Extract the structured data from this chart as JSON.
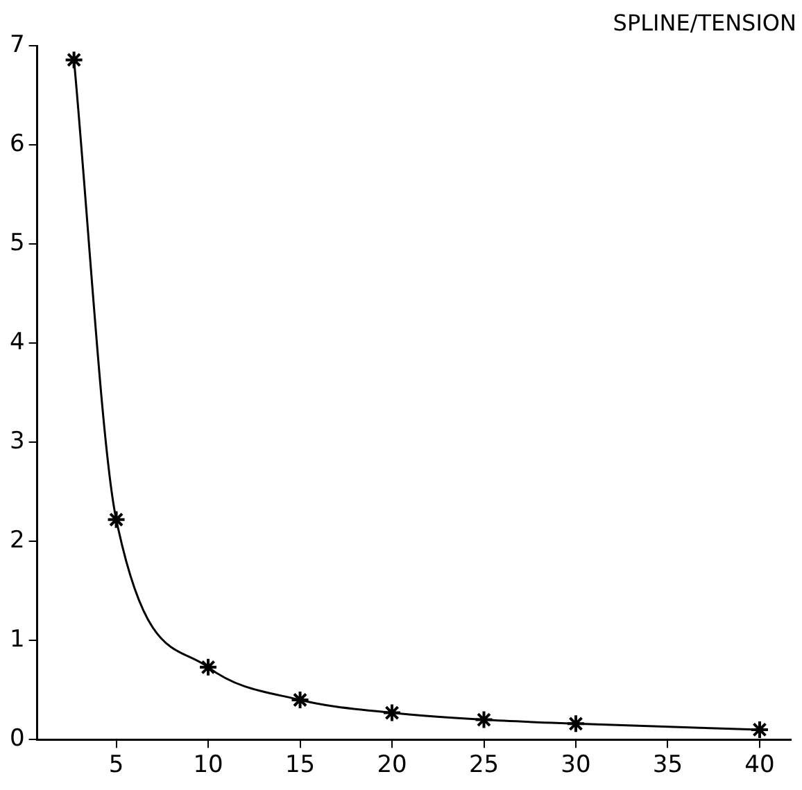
{
  "chart_data": {
    "type": "line",
    "title": "SPLINE/TENSION",
    "x": [
      2.7,
      5,
      10,
      15,
      20,
      25,
      30,
      40
    ],
    "values": [
      6.86,
      2.22,
      0.73,
      0.4,
      0.27,
      0.2,
      0.16,
      0.1
    ],
    "color": "#000000",
    "marker": "cross",
    "line_style": "solid",
    "grid": false,
    "legend": false,
    "xlim": [
      0.7,
      41.7
    ],
    "xticks": [
      5,
      10,
      15,
      20,
      25,
      30,
      35,
      40
    ],
    "ylim": [
      0,
      7
    ],
    "yticks": [
      0,
      1,
      2,
      3,
      4,
      5,
      6,
      7
    ]
  }
}
